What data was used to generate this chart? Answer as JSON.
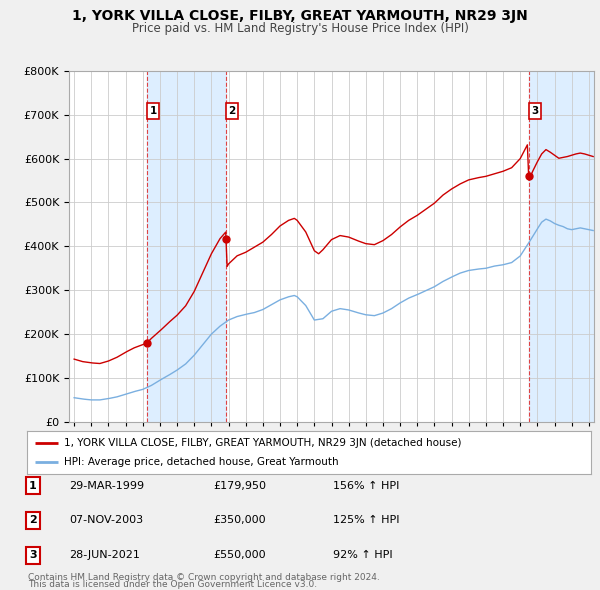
{
  "title": "1, YORK VILLA CLOSE, FILBY, GREAT YARMOUTH, NR29 3JN",
  "subtitle": "Price paid vs. HM Land Registry's House Price Index (HPI)",
  "legend_label_red": "1, YORK VILLA CLOSE, FILBY, GREAT YARMOUTH, NR29 3JN (detached house)",
  "legend_label_blue": "HPI: Average price, detached house, Great Yarmouth",
  "footer1": "Contains HM Land Registry data © Crown copyright and database right 2024.",
  "footer2": "This data is licensed under the Open Government Licence v3.0.",
  "purchases": [
    {
      "num": 1,
      "date": "29-MAR-1999",
      "price": "£179,950",
      "pct": "156%",
      "dir": "↑",
      "year": 1999.24
    },
    {
      "num": 2,
      "date": "07-NOV-2003",
      "price": "£350,000",
      "pct": "125%",
      "dir": "↑",
      "year": 2003.85
    },
    {
      "num": 3,
      "date": "28-JUN-2021",
      "price": "£550,000",
      "pct": "92%",
      "dir": "↑",
      "year": 2021.49
    }
  ],
  "purchase_values": [
    179950,
    350000,
    550000
  ],
  "purchase_years": [
    1999.24,
    2003.85,
    2021.49
  ],
  "ylim": [
    0,
    800000
  ],
  "xlim": [
    1994.7,
    2025.3
  ],
  "bg_color": "#f0f0f0",
  "plot_bg_color": "#ffffff",
  "red_color": "#cc0000",
  "blue_color": "#7aafe0",
  "shade_color": "#ddeeff",
  "grid_color": "#cccccc",
  "vline_color": "#dd4444"
}
